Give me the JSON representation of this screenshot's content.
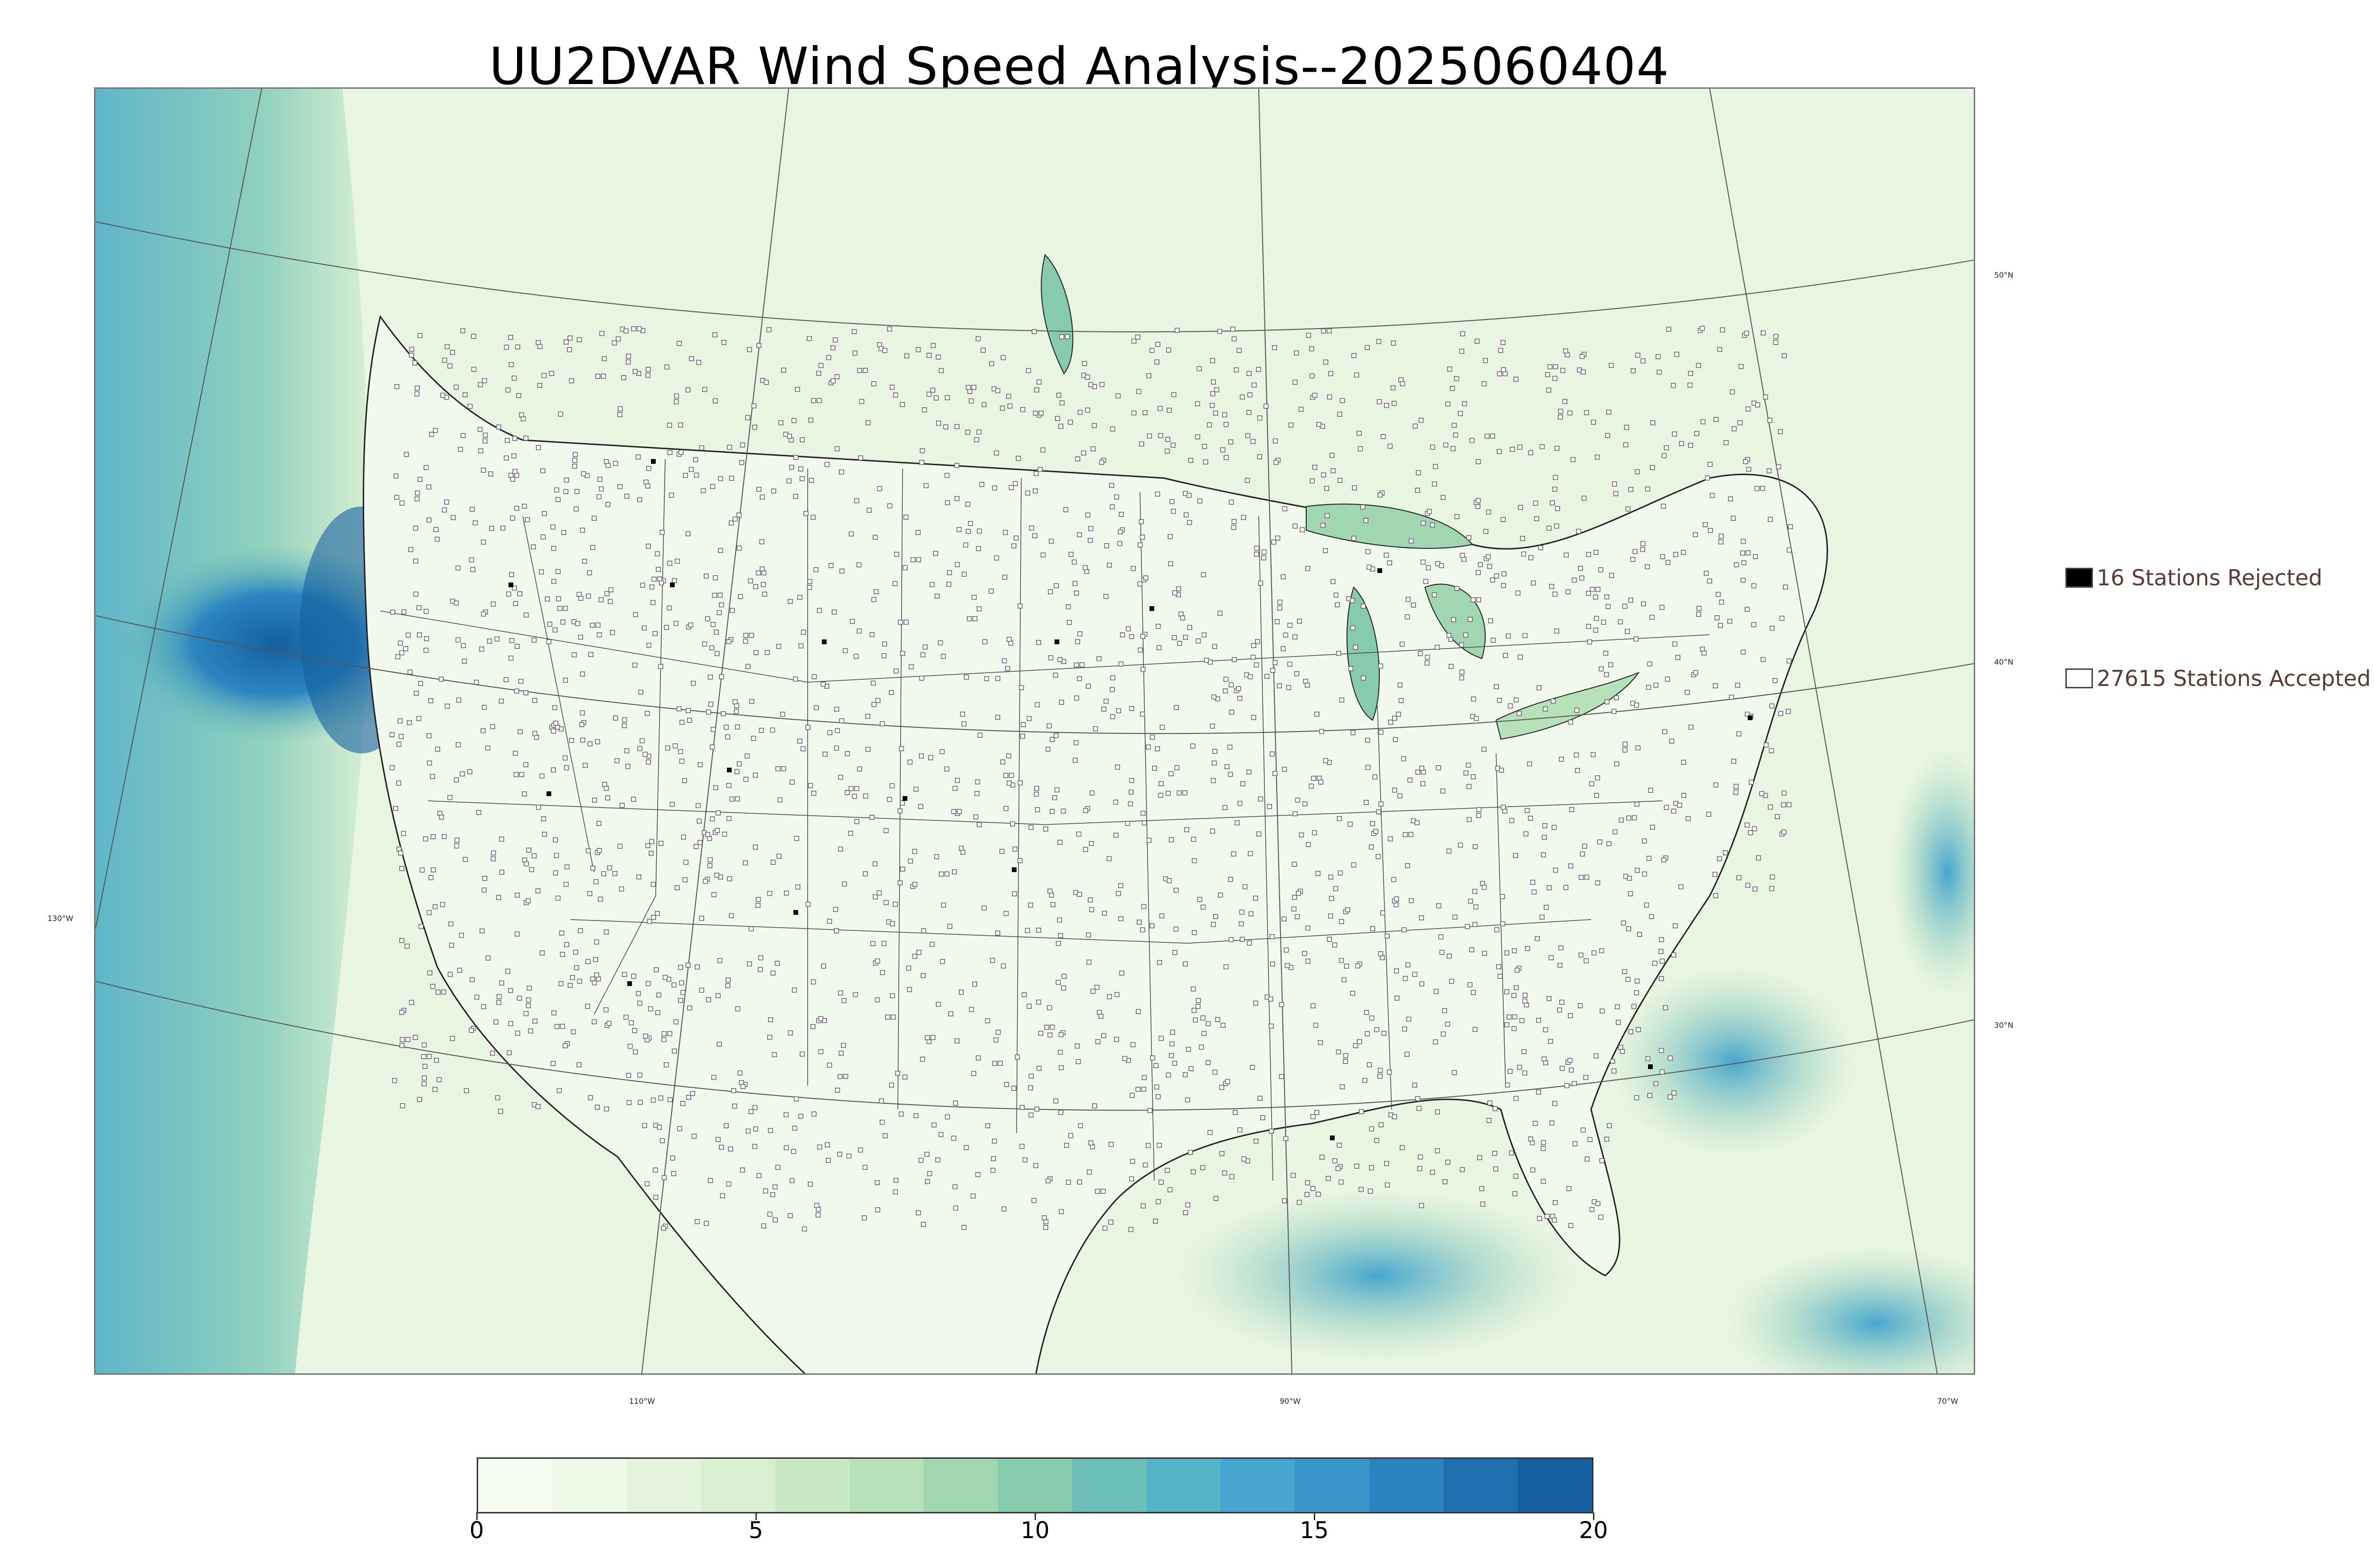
{
  "title": "UU2DVAR Wind Speed Analysis--2025060404",
  "map": {
    "lat_labels": [
      "50°N",
      "40°N",
      "30°N"
    ],
    "lon_labels": [
      "130°W",
      "110°W",
      "90°W",
      "70°W"
    ]
  },
  "legend": {
    "rejected": {
      "label": "16 Stations Rejected",
      "color": "#000000"
    },
    "accepted": {
      "label": "27615 Stations Accepted",
      "color": "#ffffff"
    }
  },
  "colorbar": {
    "min": 0,
    "max": 20,
    "ticks": [
      "0",
      "5",
      "10",
      "15",
      "20"
    ],
    "colors": [
      "#f6fbf2",
      "#edf8e6",
      "#e4f4dc",
      "#d8efd1",
      "#c9e9c4",
      "#b7e1b8",
      "#a0d6b0",
      "#86cbae",
      "#6cbfb6",
      "#55b3c9",
      "#47a6cf",
      "#3a97cc",
      "#2b84c0",
      "#1f6fb1",
      "#155f9f"
    ]
  },
  "colors": {
    "ocean_strong": "#1b73b3",
    "land": "#eaf6e3",
    "station": "#ffffff"
  }
}
